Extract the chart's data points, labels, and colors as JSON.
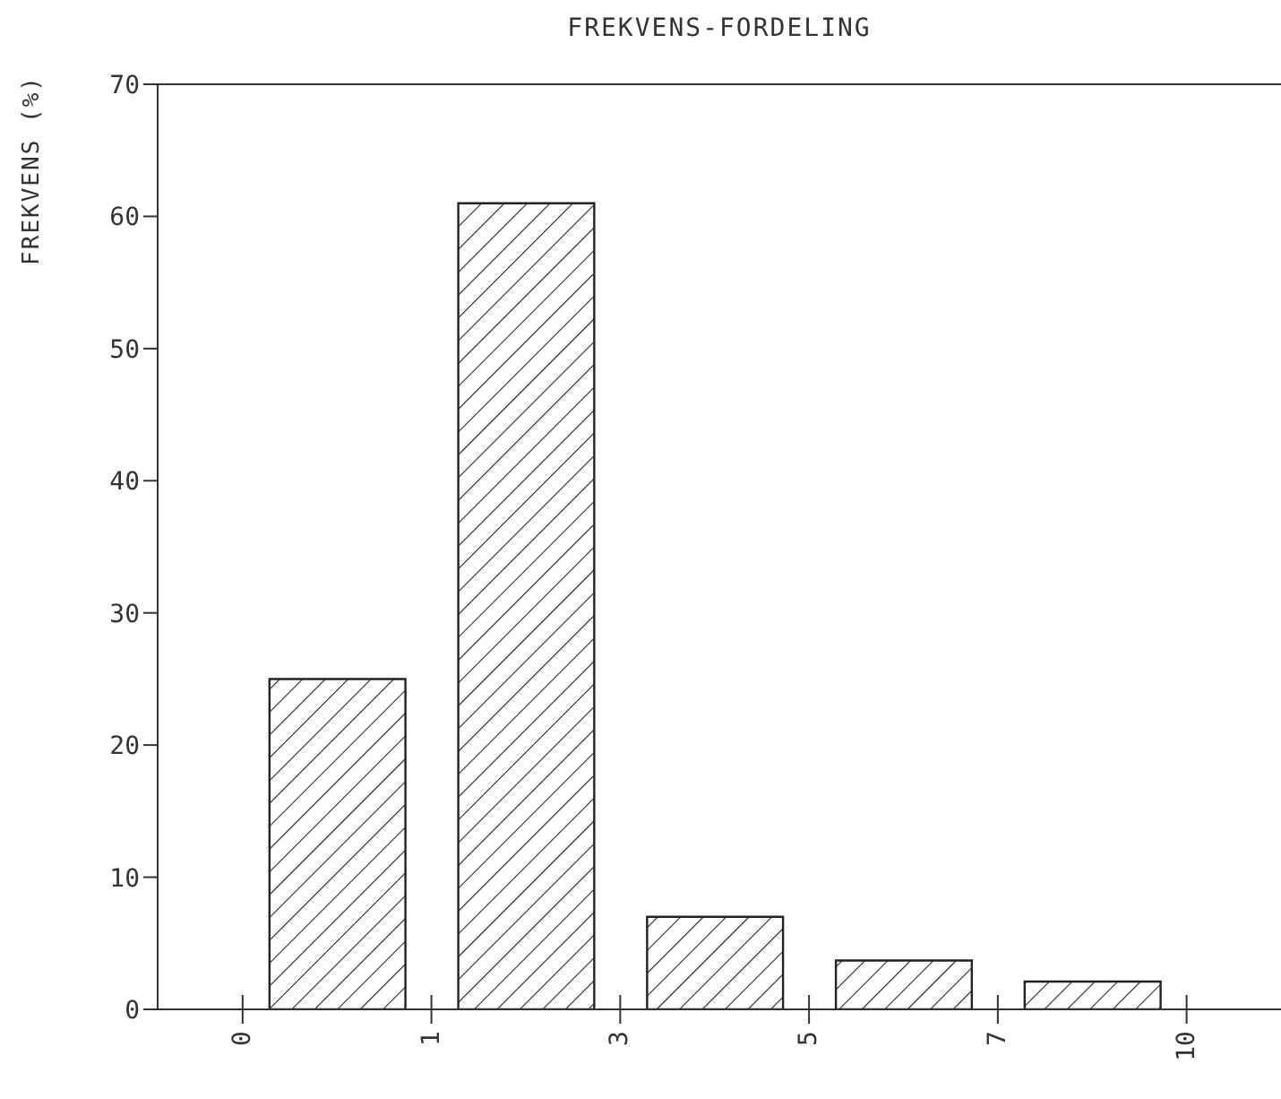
{
  "chart_data": {
    "type": "bar",
    "title": "FREKVENS-FORDELING",
    "ylabel": "FREKVENS (%)",
    "categories": [
      null,
      null,
      null,
      null,
      null
    ],
    "values": [
      25,
      61,
      7,
      3.7,
      2.1
    ],
    "color": "#222222",
    "ylim": [
      0,
      70
    ],
    "yticks": [
      0,
      10,
      20,
      30,
      40,
      50,
      60,
      70
    ],
    "annotations": [
      "0",
      "1",
      "3",
      "5",
      "7",
      "10"
    ],
    "grid": false,
    "legend": false
  }
}
